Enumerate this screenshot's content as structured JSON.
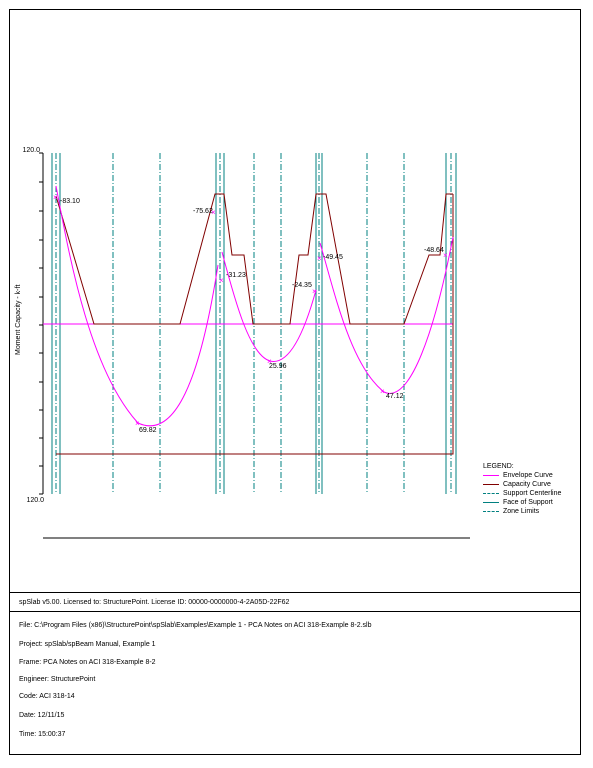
{
  "chart_data": {
    "type": "line",
    "title": "",
    "xlabel": "",
    "ylabel": "Moment Capacity - k-ft",
    "y_top_label": "120.0",
    "y_bottom_label": "120.0",
    "annotations": [
      {
        "label": "-83.10"
      },
      {
        "label": "-75.62"
      },
      {
        "label": "-31.23"
      },
      {
        "label": "-24.35"
      },
      {
        "label": "-49.45"
      },
      {
        "label": "-48.64"
      },
      {
        "label": "69.82"
      },
      {
        "label": "25.96"
      },
      {
        "label": "47.12"
      }
    ],
    "series": [
      {
        "name": "Envelope Curve",
        "color": "#ff00ff"
      },
      {
        "name": "Capacity Curve",
        "color": "#800000"
      },
      {
        "name": "Support Centerline",
        "color": "#008080",
        "style": "dash-dot"
      },
      {
        "name": "Face of Support",
        "color": "#008080",
        "style": "solid"
      },
      {
        "name": "Zone Limits",
        "color": "#008080",
        "style": "dash-dot"
      }
    ],
    "legend_title": "LEGEND:"
  },
  "footer": {
    "license": "spSlab v5.00. Licensed to: StructurePoint. License ID: 00000-0000000-4-2A05D-22F62",
    "file": "File: C:\\Program Files (x86)\\StructurePoint\\spSlab\\Examples\\Example 1 - PCA Notes on ACI 318-Example 8-2.slb",
    "project": "Project: spSlab/spBeam Manual, Example 1",
    "frame": "Frame: PCA Notes on ACI 318-Example 8-2",
    "engineer": "Engineer: StructurePoint",
    "code": "Code: ACI 318-14",
    "date": "Date: 12/11/15",
    "time": "Time: 15:00:37"
  }
}
